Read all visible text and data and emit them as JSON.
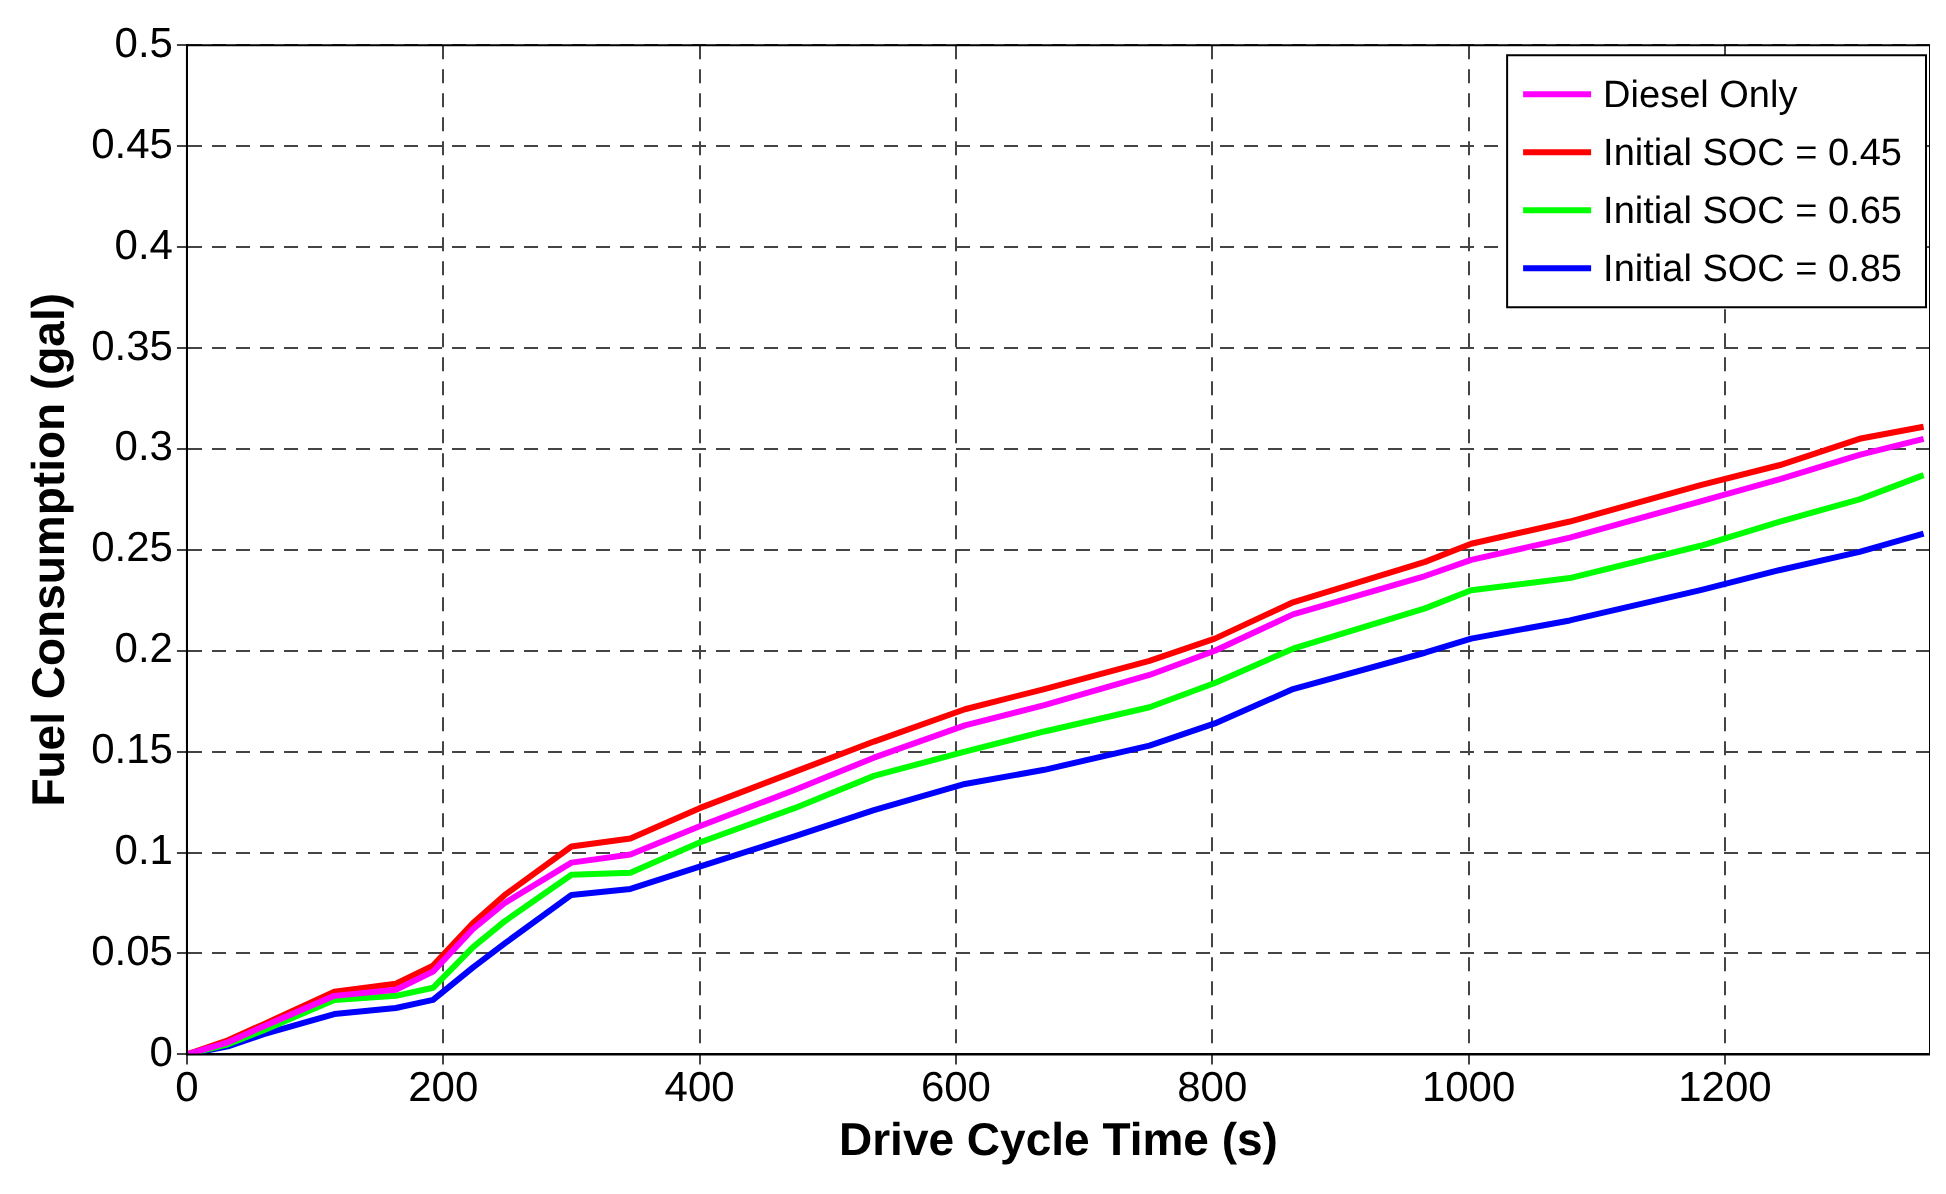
{
  "chart_data": {
    "type": "line",
    "xlabel": "Drive Cycle Time (s)",
    "ylabel": "Fuel Consumption (gal)",
    "x": [
      0,
      32,
      60,
      115,
      163,
      192,
      223,
      248,
      300,
      346,
      400,
      474,
      536,
      607,
      669,
      751,
      802,
      863,
      966,
      1002,
      1079,
      1181,
      1243,
      1305,
      1355
    ],
    "series": [
      {
        "name": "Diesel Only",
        "color": "#ff00ff",
        "values": [
          0,
          0.006,
          0.014,
          0.029,
          0.032,
          0.041,
          0.062,
          0.075,
          0.095,
          0.099,
          0.113,
          0.131,
          0.147,
          0.163,
          0.173,
          0.188,
          0.2,
          0.218,
          0.237,
          0.245,
          0.256,
          0.274,
          0.285,
          0.297,
          0.305
        ]
      },
      {
        "name": "Initial SOC = 0.45",
        "color": "#ff0000",
        "values": [
          0,
          0.007,
          0.015,
          0.031,
          0.035,
          0.044,
          0.065,
          0.079,
          0.103,
          0.107,
          0.122,
          0.14,
          0.155,
          0.171,
          0.181,
          0.195,
          0.206,
          0.224,
          0.244,
          0.253,
          0.264,
          0.282,
          0.292,
          0.305,
          0.311
        ]
      },
      {
        "name": "Initial SOC = 0.65",
        "color": "#00ff00",
        "values": [
          0,
          0.005,
          0.012,
          0.027,
          0.029,
          0.033,
          0.053,
          0.066,
          0.089,
          0.09,
          0.105,
          0.122,
          0.138,
          0.15,
          0.16,
          0.172,
          0.184,
          0.201,
          0.221,
          0.23,
          0.236,
          0.252,
          0.264,
          0.275,
          0.287
        ]
      },
      {
        "name": "Initial SOC = 0.85",
        "color": "#0000ff",
        "values": [
          0,
          0.004,
          0.01,
          0.02,
          0.023,
          0.027,
          0.043,
          0.055,
          0.079,
          0.082,
          0.093,
          0.108,
          0.121,
          0.134,
          0.141,
          0.153,
          0.164,
          0.181,
          0.199,
          0.206,
          0.215,
          0.23,
          0.24,
          0.249,
          0.258
        ]
      }
    ],
    "xlim": [
      0,
      1360
    ],
    "xticks": [
      0,
      200,
      400,
      600,
      800,
      1000,
      1200
    ],
    "ylim": [
      0,
      0.5
    ],
    "yticks": [
      0,
      0.05,
      0.1,
      0.15,
      0.2,
      0.25,
      0.3,
      0.35,
      0.4,
      0.45,
      0.5
    ],
    "grid": true,
    "legend": "top right",
    "marker": "none",
    "line_style": "solid"
  }
}
